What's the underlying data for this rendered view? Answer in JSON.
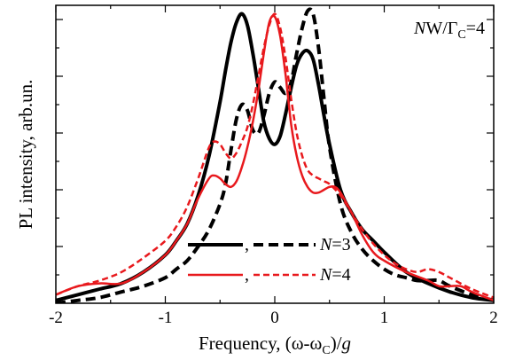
{
  "chart_data": {
    "type": "line",
    "xlabel": "Frequency, (ω-ωₙ)/g",
    "xlabel_parts": {
      "main": "Frequency, (ω-ω",
      "sub": "C",
      "tail": ")/",
      "italic_g": "g"
    },
    "ylabel": "PL intensity, arb.un.",
    "xlim": [
      -2,
      2
    ],
    "ylim": [
      0,
      1.05
    ],
    "x_ticks": [
      "-2",
      "-1",
      "0",
      "1",
      "2"
    ],
    "y_ticks_labeled": false,
    "grid": false,
    "annotation": {
      "italic": "N",
      "main": "W/Γ",
      "sub": "C",
      "tail": "=4"
    },
    "legend": {
      "position": "bottom-center",
      "entries": [
        {
          "label_italic": "N",
          "label": "=3",
          "comma": ",",
          "color": "#000000"
        },
        {
          "label_italic": "N",
          "label": "=4",
          "comma": ",",
          "color": "#e8191d"
        }
      ]
    },
    "series": [
      {
        "color": "#000000",
        "style": "solid",
        "x": [
          -2.0,
          -1.8,
          -1.6,
          -1.4,
          -1.2,
          -1.0,
          -0.9,
          -0.8,
          -0.7,
          -0.6,
          -0.5,
          -0.45,
          -0.4,
          -0.35,
          -0.3,
          -0.25,
          -0.2,
          -0.15,
          -0.1,
          -0.05,
          0.0,
          0.05,
          0.1,
          0.15,
          0.2,
          0.25,
          0.3,
          0.35,
          0.4,
          0.45,
          0.5,
          0.6,
          0.7,
          0.8,
          0.9,
          1.0,
          1.2,
          1.4,
          1.6,
          1.8,
          2.0
        ],
        "y": [
          0.01,
          0.03,
          0.05,
          0.07,
          0.11,
          0.17,
          0.22,
          0.28,
          0.38,
          0.52,
          0.71,
          0.82,
          0.92,
          0.99,
          1.02,
          0.98,
          0.88,
          0.76,
          0.64,
          0.58,
          0.56,
          0.59,
          0.67,
          0.76,
          0.84,
          0.88,
          0.89,
          0.86,
          0.77,
          0.66,
          0.56,
          0.4,
          0.32,
          0.26,
          0.22,
          0.18,
          0.11,
          0.07,
          0.04,
          0.02,
          0.01
        ]
      },
      {
        "color": "#000000",
        "style": "dashed",
        "x": [
          -2.0,
          -1.8,
          -1.6,
          -1.4,
          -1.2,
          -1.0,
          -0.9,
          -0.8,
          -0.7,
          -0.6,
          -0.5,
          -0.45,
          -0.4,
          -0.35,
          -0.3,
          -0.25,
          -0.2,
          -0.15,
          -0.1,
          -0.05,
          0.0,
          0.05,
          0.1,
          0.15,
          0.2,
          0.25,
          0.3,
          0.35,
          0.4,
          0.45,
          0.5,
          0.6,
          0.7,
          0.8,
          0.9,
          1.0,
          1.1,
          1.2,
          1.3,
          1.4,
          1.5,
          1.6,
          1.8,
          2.0
        ],
        "y": [
          0.0,
          0.01,
          0.02,
          0.04,
          0.06,
          0.09,
          0.12,
          0.15,
          0.2,
          0.26,
          0.35,
          0.42,
          0.54,
          0.65,
          0.7,
          0.68,
          0.61,
          0.6,
          0.66,
          0.74,
          0.78,
          0.76,
          0.74,
          0.78,
          0.88,
          0.97,
          1.03,
          1.02,
          0.9,
          0.72,
          0.55,
          0.35,
          0.25,
          0.19,
          0.15,
          0.12,
          0.1,
          0.09,
          0.08,
          0.08,
          0.08,
          0.06,
          0.03,
          0.01
        ]
      },
      {
        "color": "#e8191d",
        "style": "solid",
        "x": [
          -2.0,
          -1.8,
          -1.6,
          -1.4,
          -1.2,
          -1.0,
          -0.9,
          -0.8,
          -0.7,
          -0.6,
          -0.55,
          -0.5,
          -0.45,
          -0.4,
          -0.35,
          -0.3,
          -0.25,
          -0.2,
          -0.15,
          -0.1,
          -0.05,
          0.0,
          0.05,
          0.1,
          0.15,
          0.2,
          0.25,
          0.3,
          0.35,
          0.4,
          0.45,
          0.5,
          0.55,
          0.6,
          0.7,
          0.8,
          0.9,
          1.0,
          1.2,
          1.4,
          1.5,
          1.6,
          1.7,
          1.8,
          2.0
        ],
        "y": [
          0.03,
          0.06,
          0.07,
          0.07,
          0.11,
          0.17,
          0.22,
          0.28,
          0.37,
          0.44,
          0.45,
          0.44,
          0.42,
          0.41,
          0.43,
          0.48,
          0.55,
          0.64,
          0.75,
          0.88,
          0.99,
          1.01,
          0.94,
          0.8,
          0.63,
          0.52,
          0.45,
          0.41,
          0.39,
          0.39,
          0.4,
          0.41,
          0.41,
          0.39,
          0.32,
          0.24,
          0.18,
          0.15,
          0.11,
          0.08,
          0.06,
          0.06,
          0.06,
          0.04,
          0.01
        ]
      },
      {
        "color": "#e8191d",
        "style": "dashed",
        "x": [
          -2.0,
          -1.8,
          -1.6,
          -1.4,
          -1.2,
          -1.0,
          -0.9,
          -0.8,
          -0.7,
          -0.6,
          -0.55,
          -0.5,
          -0.45,
          -0.4,
          -0.35,
          -0.3,
          -0.25,
          -0.2,
          -0.15,
          -0.1,
          -0.05,
          0.0,
          0.05,
          0.1,
          0.15,
          0.2,
          0.25,
          0.3,
          0.35,
          0.4,
          0.45,
          0.5,
          0.6,
          0.7,
          0.8,
          0.9,
          1.0,
          1.1,
          1.2,
          1.3,
          1.4,
          1.5,
          1.6,
          1.8,
          2.0
        ],
        "y": [
          0.03,
          0.06,
          0.08,
          0.11,
          0.16,
          0.22,
          0.27,
          0.34,
          0.44,
          0.55,
          0.57,
          0.56,
          0.53,
          0.51,
          0.53,
          0.57,
          0.62,
          0.7,
          0.8,
          0.9,
          0.98,
          1.02,
          0.97,
          0.86,
          0.72,
          0.6,
          0.52,
          0.47,
          0.45,
          0.44,
          0.43,
          0.42,
          0.38,
          0.32,
          0.26,
          0.21,
          0.17,
          0.14,
          0.12,
          0.11,
          0.12,
          0.11,
          0.09,
          0.05,
          0.02
        ]
      }
    ]
  }
}
